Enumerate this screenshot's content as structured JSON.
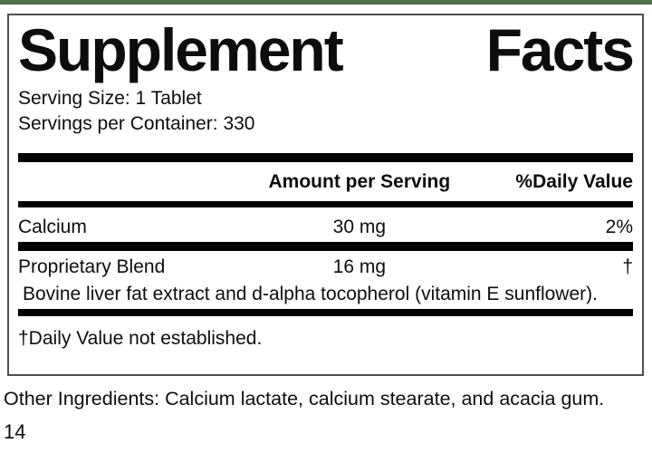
{
  "colors": {
    "accent_green": "#4b7347",
    "rule_black": "#000000"
  },
  "title": {
    "word1": "Supplement",
    "word2": "Facts"
  },
  "serving": {
    "size": "Serving Size: 1 Tablet",
    "per_container": "Servings per Container: 330"
  },
  "table": {
    "header": {
      "amount": "Amount per Serving",
      "dv": "%Daily Value"
    },
    "rows": [
      {
        "name": "Calcium",
        "amount": "30 mg",
        "dv": "2%"
      },
      {
        "name": "Proprietary Blend",
        "amount": "16 mg",
        "dv": "†"
      }
    ],
    "blend_description": "Bovine liver fat extract and d-alpha tocopherol (vitamin E sunflower).",
    "footnote": "†Daily Value not established."
  },
  "other_ingredients": "Other Ingredients: Calcium lactate, calcium stearate, and acacia gum.",
  "page_number": "14"
}
